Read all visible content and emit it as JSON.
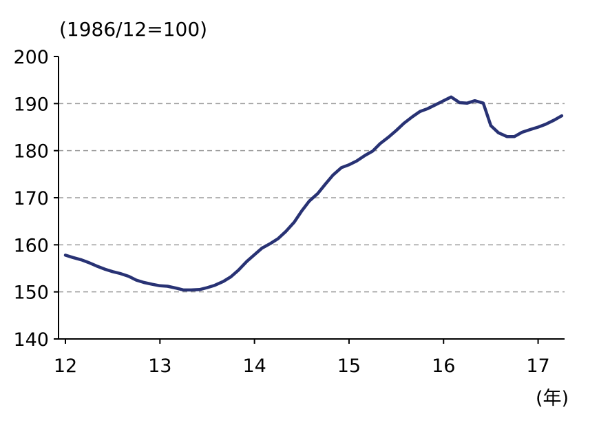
{
  "title": "(1986/12=100)",
  "x_axis_unit": "(年)",
  "chart_data": {
    "type": "line",
    "title": "(1986/12=100)",
    "xlabel": "(年)",
    "ylabel": "",
    "x_ticks": [
      12,
      13,
      14,
      15,
      16,
      17
    ],
    "y_ticks": [
      140,
      150,
      160,
      170,
      180,
      190,
      200
    ],
    "xlim": [
      12,
      17.28
    ],
    "ylim": [
      140,
      200
    ],
    "gridlines_y": [
      150,
      160,
      170,
      180,
      190
    ],
    "grid_on": true,
    "legend": "none",
    "line_color": "#283274",
    "grid_color": "#9b9b9b",
    "series": [
      {
        "name": "index (1986/12=100)",
        "x": [
          12.0,
          12.08,
          12.17,
          12.25,
          12.33,
          12.42,
          12.5,
          12.58,
          12.67,
          12.75,
          12.83,
          12.92,
          13.0,
          13.08,
          13.17,
          13.25,
          13.33,
          13.42,
          13.5,
          13.58,
          13.67,
          13.75,
          13.83,
          13.92,
          14.0,
          14.08,
          14.17,
          14.25,
          14.33,
          14.42,
          14.5,
          14.58,
          14.67,
          14.75,
          14.83,
          14.92,
          15.0,
          15.08,
          15.17,
          15.25,
          15.33,
          15.42,
          15.5,
          15.58,
          15.67,
          15.75,
          15.83,
          15.92,
          16.0,
          16.08,
          16.17,
          16.25,
          16.33,
          16.42,
          16.5,
          16.58,
          16.67,
          16.75,
          16.83,
          16.92,
          17.0,
          17.08,
          17.17,
          17.25
        ],
        "y": [
          157.8,
          157.3,
          156.8,
          156.2,
          155.5,
          154.8,
          154.3,
          153.9,
          153.3,
          152.5,
          152.0,
          151.6,
          151.3,
          151.2,
          150.8,
          150.4,
          150.4,
          150.5,
          150.9,
          151.4,
          152.2,
          153.2,
          154.6,
          156.5,
          157.9,
          159.3,
          160.3,
          161.3,
          162.8,
          164.8,
          167.2,
          169.3,
          170.9,
          172.9,
          174.8,
          176.4,
          177.0,
          177.8,
          179.0,
          179.9,
          181.5,
          182.9,
          184.3,
          185.8,
          187.2,
          188.3,
          188.9,
          189.8,
          190.6,
          191.4,
          190.2,
          190.1,
          190.6,
          190.1,
          185.3,
          183.8,
          183.0,
          183.0,
          183.9,
          184.5,
          185.0,
          185.6,
          186.5,
          187.4
        ]
      }
    ]
  }
}
